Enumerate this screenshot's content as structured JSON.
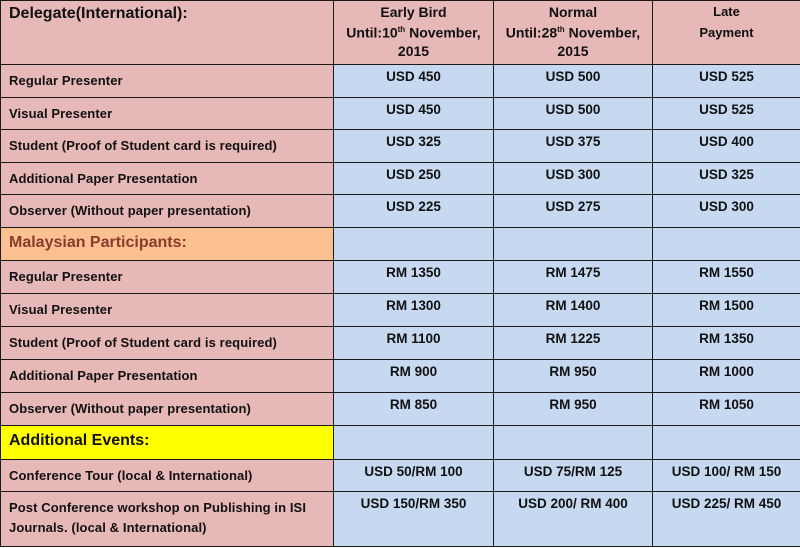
{
  "header": {
    "title": "Delegate(International):",
    "columns": [
      {
        "name": "Early Bird",
        "until_prefix": "Until:10",
        "sup": "th",
        "until_suffix": " November,",
        "year": "2015"
      },
      {
        "name": "Normal",
        "until_prefix": "Until:28",
        "sup": "th",
        "until_suffix": " November,",
        "year": "2015"
      },
      {
        "name": "Late",
        "line2": "Payment"
      }
    ]
  },
  "sections": [
    {
      "rows": [
        {
          "label": "Regular Presenter",
          "values": [
            "USD 450",
            "USD 500",
            "USD 525"
          ]
        },
        {
          "label": "Visual Presenter",
          "values": [
            "USD 450",
            "USD 500",
            "USD 525"
          ]
        },
        {
          "label": "Student (Proof of Student card is required)",
          "values": [
            "USD 325",
            "USD 375",
            "USD 400"
          ]
        },
        {
          "label": "Additional Paper Presentation",
          "values": [
            "USD 250",
            "USD 300",
            "USD 325"
          ]
        },
        {
          "label": "Observer (Without paper presentation)",
          "values": [
            "USD 225",
            "USD 275",
            "USD 300"
          ]
        }
      ]
    },
    {
      "title": "Malaysian Participants:",
      "color": "#fac090",
      "rows": [
        {
          "label": "Regular Presenter",
          "values": [
            "RM 1350",
            "RM 1475",
            "RM 1550"
          ]
        },
        {
          "label": "Visual Presenter",
          "values": [
            "RM 1300",
            "RM 1400",
            "RM 1500"
          ]
        },
        {
          "label": "Student (Proof of Student card is required)",
          "values": [
            "RM 1100",
            "RM 1225",
            "RM 1350"
          ]
        },
        {
          "label": "Additional Paper Presentation",
          "values": [
            "RM 900",
            "RM 950",
            "RM 1000"
          ]
        },
        {
          "label": "Observer (Without paper presentation)",
          "values": [
            "RM 850",
            "RM 950",
            "RM 1050"
          ]
        }
      ]
    },
    {
      "title": "Additional Events:",
      "color": "#ffff00",
      "rows": [
        {
          "label": "Conference Tour (local & International)",
          "values": [
            "USD 50/RM 100",
            "USD 75/RM 125",
            "USD 100/ RM 150"
          ]
        },
        {
          "label": "Post Conference workshop on Publishing in ISI Journals. (local & International)",
          "values": [
            "USD 150/RM 350",
            "USD 200/ RM 400",
            "USD 225/ RM 450"
          ]
        }
      ]
    }
  ],
  "colors": {
    "label_bg": "#e6b8b7",
    "value_bg": "#c6d9f0",
    "malaysian_header": "#fac090",
    "additional_header": "#ffff00"
  }
}
